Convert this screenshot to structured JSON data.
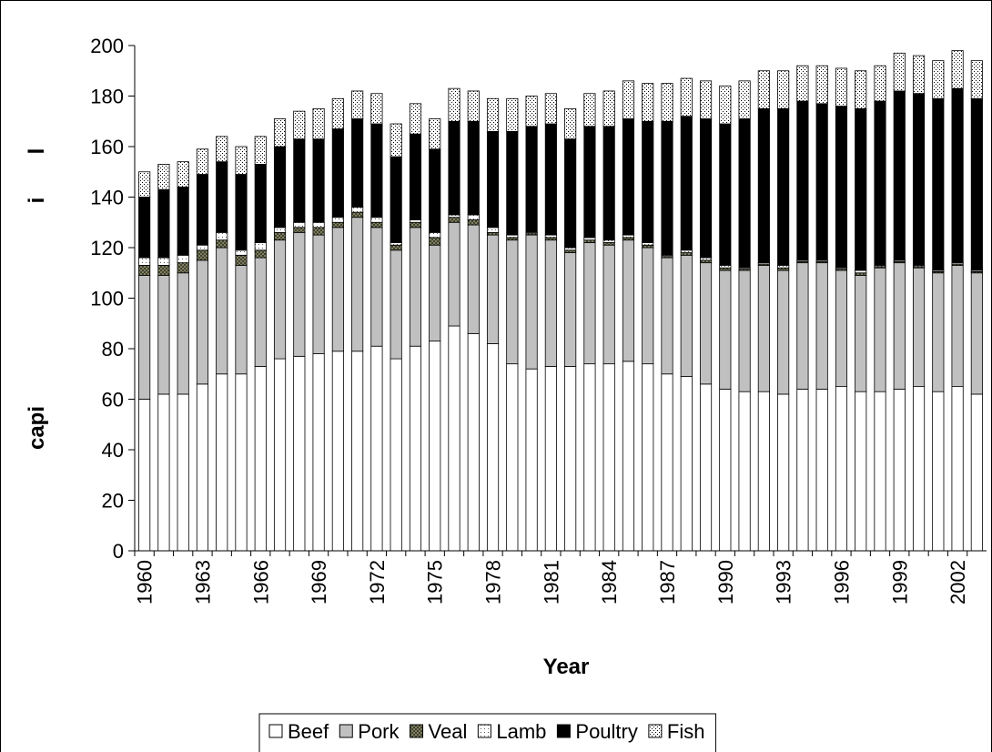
{
  "chart_data": {
    "type": "stacked-bar",
    "x_label": "Year",
    "y_label_parts": [
      "capi",
      "i",
      "l"
    ],
    "categories": [
      "1960",
      null,
      null,
      "1963",
      null,
      null,
      "1966",
      null,
      null,
      "1969",
      null,
      null,
      "1972",
      null,
      null,
      "1975",
      null,
      null,
      "1978",
      null,
      null,
      "1981",
      null,
      null,
      "1984",
      null,
      null,
      "1987",
      null,
      null,
      "1990",
      null,
      null,
      "1993",
      null,
      null,
      "1996",
      null,
      null,
      "1999",
      null,
      null,
      "2002",
      null
    ],
    "ylim": [
      0,
      200
    ],
    "yticks": [
      0,
      20,
      40,
      60,
      80,
      100,
      120,
      140,
      160,
      180,
      200
    ],
    "legend": "bottom",
    "series": [
      {
        "name": "Beef",
        "color": "#ffffff",
        "values": [
          60,
          62,
          62,
          66,
          70,
          70,
          73,
          76,
          77,
          78,
          79,
          79,
          81,
          76,
          81,
          83,
          89,
          86,
          82,
          74,
          72,
          73,
          73,
          74,
          74,
          75,
          74,
          70,
          69,
          66,
          64,
          63,
          63,
          62,
          64,
          64,
          65,
          63,
          63,
          64,
          65,
          63,
          65,
          62
        ]
      },
      {
        "name": "Pork",
        "color": "#c0c0c0",
        "values": [
          49,
          47,
          48,
          49,
          50,
          43,
          43,
          47,
          49,
          47,
          49,
          53,
          47,
          43,
          47,
          38,
          41,
          43,
          43,
          49,
          53,
          50,
          45,
          48,
          47,
          48,
          46,
          46,
          48,
          48,
          47,
          48,
          50,
          49,
          50,
          50,
          46,
          46,
          49,
          50,
          47,
          47,
          48,
          48
        ]
      },
      {
        "name": "Veal",
        "color": "#7f8060",
        "pattern": "checker",
        "values": [
          4,
          4,
          4,
          4,
          3,
          4,
          3,
          3,
          2,
          3,
          2,
          2,
          2,
          2,
          2,
          3,
          2,
          2,
          1,
          1,
          0.5,
          1,
          1,
          1,
          1,
          1,
          1,
          0.5,
          1,
          1,
          1,
          0.5,
          0.5,
          1,
          0.5,
          0.5,
          0.5,
          1,
          0.5,
          0.5,
          0.5,
          0.5,
          0.5,
          0.5
        ]
      },
      {
        "name": "Lamb",
        "color": "#ffffff",
        "pattern": "dots",
        "values": [
          3,
          3,
          3,
          2,
          3,
          2,
          3,
          2,
          2,
          2,
          2,
          2,
          2,
          1,
          1,
          2,
          1,
          2,
          2,
          1,
          0.5,
          1,
          1,
          1,
          1,
          1,
          1,
          0.5,
          1,
          1,
          1,
          0.5,
          0.5,
          1,
          0.5,
          0.5,
          0.5,
          1,
          0.5,
          0.5,
          0.5,
          0.5,
          0.5,
          0.5
        ]
      },
      {
        "name": "Poultry",
        "color": "#000000",
        "values": [
          24,
          27,
          27,
          28,
          28,
          30,
          31,
          32,
          33,
          33,
          35,
          35,
          37,
          34,
          34,
          33,
          37,
          37,
          38,
          41,
          42,
          44,
          43,
          44,
          45,
          46,
          48,
          53,
          53,
          55,
          56,
          59,
          61,
          62,
          63,
          62,
          64,
          64,
          65,
          67,
          68,
          68,
          69,
          68
        ]
      },
      {
        "name": "Fish",
        "color": "#ffffff",
        "pattern": "grid",
        "values": [
          10,
          10,
          10,
          10,
          10,
          11,
          11,
          11,
          11,
          12,
          12,
          11,
          12,
          13,
          12,
          12,
          13,
          12,
          13,
          13,
          12,
          12,
          12,
          13,
          14,
          15,
          15,
          15,
          15,
          15,
          15,
          15,
          15,
          15,
          14,
          15,
          15,
          15,
          14,
          15,
          15,
          15,
          15,
          15
        ]
      }
    ]
  }
}
